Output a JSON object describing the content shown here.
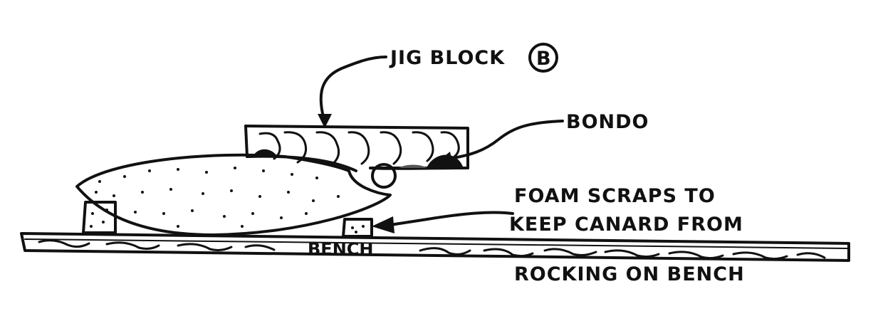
{
  "labels": {
    "jig_block": "JIG BLOCK",
    "jig_block_marker": "B",
    "bondo": "BONDO",
    "foam_line_1": "FOAM SCRAPS TO",
    "foam_line_2": "KEEP CANARD FROM",
    "foam_line_3": "ROCKING ON BENCH",
    "bench": "BENCH"
  }
}
